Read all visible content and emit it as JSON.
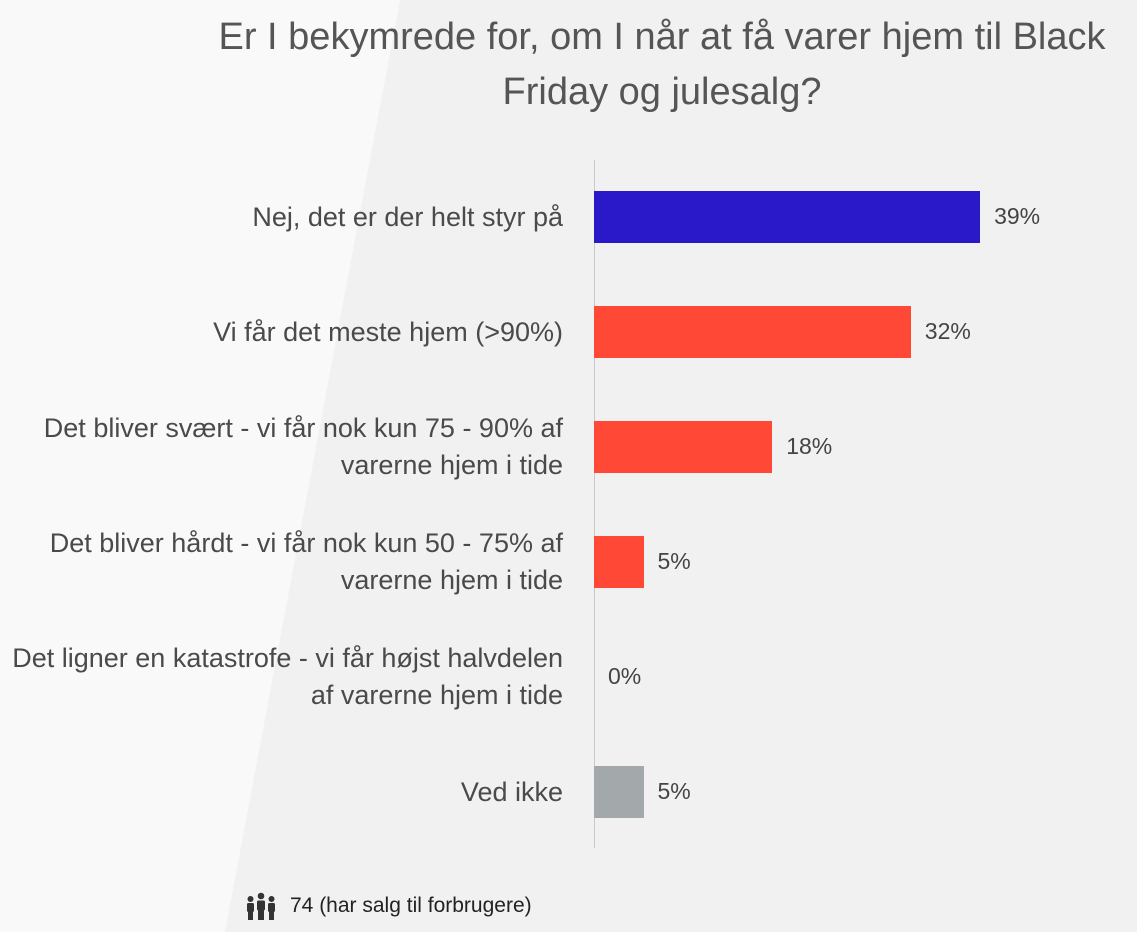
{
  "chart_data": {
    "type": "bar",
    "orientation": "horizontal",
    "title": "Er I bekymrede for, om I når at få varer hjem til Black Friday og julesalg?",
    "categories": [
      "Nej, det er der helt styr på",
      "Vi får det meste hjem (>90%)",
      "Det bliver svært - vi får nok kun 75 - 90% af varerne hjem i tide",
      "Det bliver hårdt - vi får nok kun 50 - 75% af varerne hjem i tide",
      "Det  ligner en katastrofe - vi får højst halvdelen af varerne hjem i tide",
      "Ved ikke"
    ],
    "values": [
      39,
      32,
      18,
      5,
      0,
      5
    ],
    "value_labels": [
      "39%",
      "32%",
      "18%",
      "5%",
      "0%",
      "5%"
    ],
    "colors": [
      "#2a19c8",
      "#ff4836",
      "#ff4836",
      "#ff4836",
      "#ff4836",
      "#a3a8ab"
    ],
    "unit": "%",
    "xlim": [
      0,
      40
    ],
    "grid": false
  },
  "footer": {
    "icon": "people-icon",
    "text": "74 (har salg til forbrugere)"
  }
}
